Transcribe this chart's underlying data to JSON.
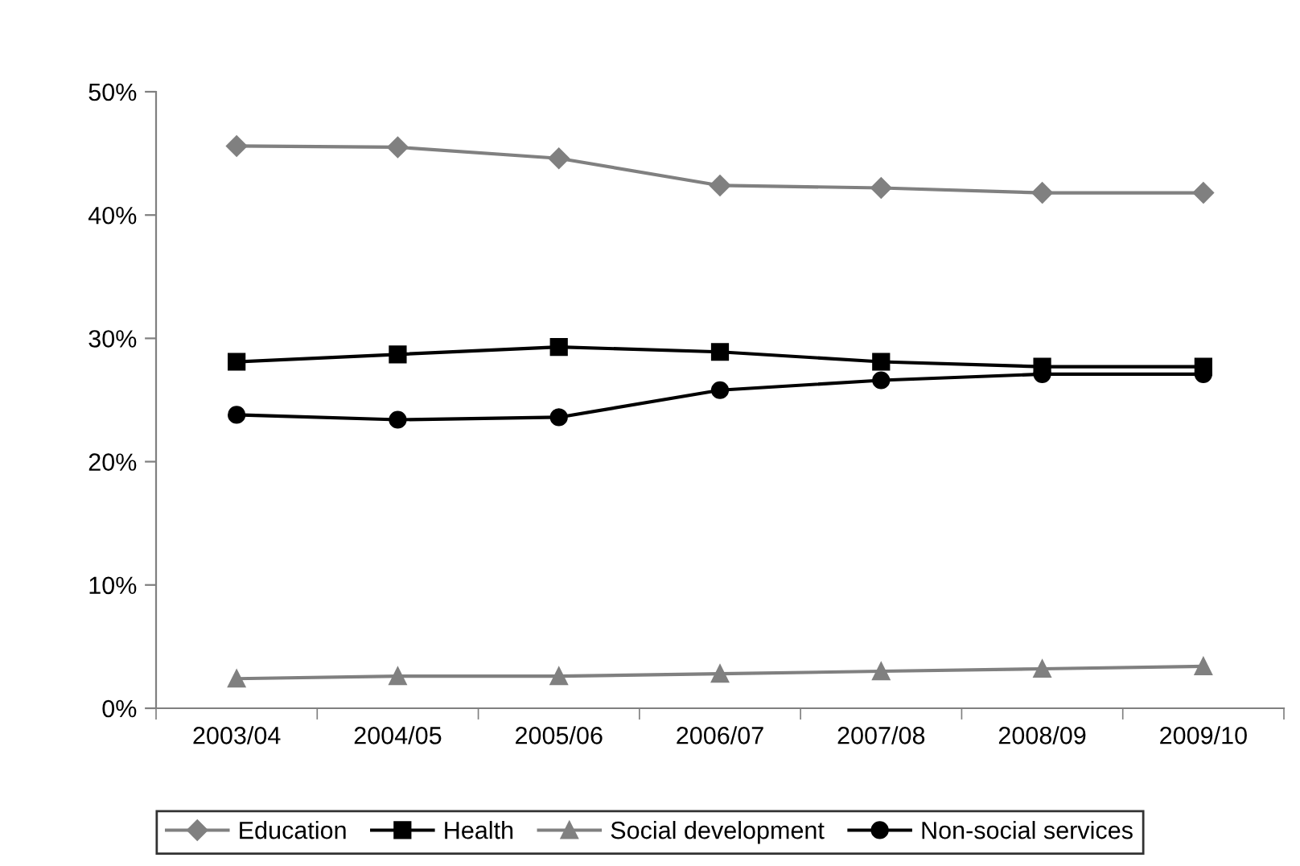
{
  "chart_data": {
    "type": "line",
    "categories": [
      "2003/04",
      "2004/05",
      "2005/06",
      "2006/07",
      "2007/08",
      "2008/09",
      "2009/10"
    ],
    "series": [
      {
        "name": "Education",
        "color": "#808080",
        "marker": "diamond",
        "values": [
          45.6,
          45.5,
          44.6,
          42.4,
          42.2,
          41.8,
          41.8
        ]
      },
      {
        "name": "Health",
        "color": "#000000",
        "marker": "square",
        "values": [
          28.1,
          28.7,
          29.3,
          28.9,
          28.1,
          27.7,
          27.7
        ]
      },
      {
        "name": "Social development",
        "color": "#808080",
        "marker": "triangle",
        "values": [
          2.4,
          2.6,
          2.6,
          2.8,
          3.0,
          3.2,
          3.4
        ]
      },
      {
        "name": "Non-social services",
        "color": "#000000",
        "marker": "circle",
        "values": [
          23.8,
          23.4,
          23.6,
          25.8,
          26.6,
          27.1,
          27.1
        ]
      }
    ],
    "ylim": [
      0,
      50
    ],
    "yticks": [
      {
        "value": 0,
        "label": "0%"
      },
      {
        "value": 10,
        "label": "10%"
      },
      {
        "value": 20,
        "label": "20%"
      },
      {
        "value": 30,
        "label": "30%"
      },
      {
        "value": 40,
        "label": "40%"
      },
      {
        "value": 50,
        "label": "50%"
      }
    ],
    "grid": false,
    "legend": "bottom",
    "line_style": "solid"
  }
}
